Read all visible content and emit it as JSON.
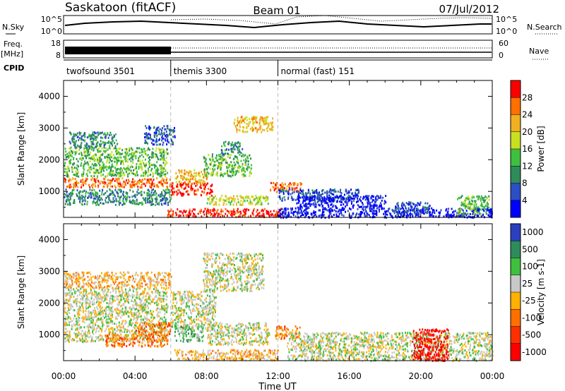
{
  "header": {
    "station": "Saskatoon (fitACF)",
    "beam": "Beam 01",
    "date": "07/Jul/2012"
  },
  "nsky_panel": {
    "left_label": "N.Sky",
    "right_label": "N.Search",
    "left_ticks": [
      "10^5",
      "10^0"
    ],
    "right_ticks": [
      "10^5",
      "10^0"
    ]
  },
  "freq_panel": {
    "left_label_1": "Freq.",
    "left_label_2": "[MHz]",
    "right_label": "Nave",
    "left_ticks": [
      "18",
      "8"
    ],
    "right_ticks": [
      "60",
      "0"
    ]
  },
  "cpid": {
    "label": "CPID",
    "segments": [
      {
        "name": "twofsound 3501",
        "start_hour": 0,
        "end_hour": 6
      },
      {
        "name": "themis 3300",
        "start_hour": 6,
        "end_hour": 12
      },
      {
        "name": "normal (fast) 151",
        "start_hour": 12,
        "end_hour": 24
      }
    ]
  },
  "chart_data": [
    {
      "type": "heatmap",
      "name": "power",
      "ylabel": "Slant Range [km]",
      "xlim": [
        0,
        24
      ],
      "ylim": [
        180,
        4500
      ],
      "yticks": [
        1000,
        2000,
        3000,
        4000
      ],
      "colorbar": {
        "label": "Power [dB]",
        "ticks": [
          "4",
          "8",
          "12",
          "16",
          "20",
          "24",
          "28"
        ],
        "colors": [
          "#0000ff",
          "#2b4fc4",
          "#2e8c5a",
          "#3fbf3f",
          "#c8e020",
          "#f0b020",
          "#ff7000",
          "#ff0000"
        ]
      },
      "blobs": [
        {
          "h0": 0.0,
          "h1": 6.0,
          "r0": 1150,
          "r1": 1450,
          "level": 6
        },
        {
          "h0": 0.0,
          "h1": 5.8,
          "r0": 1500,
          "r1": 2400,
          "level": 3
        },
        {
          "h0": 0.3,
          "h1": 3.0,
          "r0": 2400,
          "r1": 2900,
          "level": 2
        },
        {
          "h0": 0.0,
          "h1": 6.0,
          "r0": 600,
          "r1": 1100,
          "level": 2
        },
        {
          "h0": 4.5,
          "h1": 6.2,
          "r0": 2500,
          "r1": 3100,
          "level": 1
        },
        {
          "h0": 6.0,
          "h1": 8.3,
          "r0": 900,
          "r1": 1300,
          "level": 7
        },
        {
          "h0": 6.2,
          "h1": 8.0,
          "r0": 1300,
          "r1": 1700,
          "level": 5
        },
        {
          "h0": 7.8,
          "h1": 10.5,
          "r0": 1500,
          "r1": 2200,
          "level": 3
        },
        {
          "h0": 8.8,
          "h1": 10.0,
          "r0": 2200,
          "r1": 2600,
          "level": 2
        },
        {
          "h0": 9.5,
          "h1": 11.7,
          "r0": 2900,
          "r1": 3400,
          "level": 5
        },
        {
          "h0": 5.8,
          "h1": 12.3,
          "r0": 220,
          "r1": 480,
          "level": 7
        },
        {
          "h0": 8.0,
          "h1": 11.5,
          "r0": 600,
          "r1": 900,
          "level": 4
        },
        {
          "h0": 11.5,
          "h1": 13.3,
          "r0": 1000,
          "r1": 1300,
          "level": 6
        },
        {
          "h0": 12.0,
          "h1": 16.5,
          "r0": 700,
          "r1": 1100,
          "level": 1
        },
        {
          "h0": 12.0,
          "h1": 24.0,
          "r0": 200,
          "r1": 500,
          "level": 0
        },
        {
          "h0": 13.0,
          "h1": 18.0,
          "r0": 500,
          "r1": 900,
          "level": 0
        },
        {
          "h0": 18.5,
          "h1": 20.5,
          "r0": 300,
          "r1": 700,
          "level": 1
        },
        {
          "h0": 22.0,
          "h1": 23.8,
          "r0": 300,
          "r1": 900,
          "level": 3
        }
      ]
    },
    {
      "type": "heatmap",
      "name": "velocity",
      "xlabel": "Time UT",
      "ylabel": "Slant Range [km]",
      "xlim": [
        0,
        24
      ],
      "ylim": [
        180,
        4500
      ],
      "xticks": [
        "00:00",
        "04:00",
        "08:00",
        "12:00",
        "16:00",
        "20:00",
        "00:00"
      ],
      "yticks": [
        1000,
        2000,
        3000,
        4000
      ],
      "colorbar": {
        "label": "Velocity",
        "unit": "[m s-1]",
        "ticks": [
          "1000",
          "500",
          "100",
          "25",
          "-25",
          "-100",
          "-500",
          "-1000"
        ],
        "colors": [
          "#2b3fbf",
          "#2e8c5a",
          "#3fbf3f",
          "#c8c8c8",
          "#ffb000",
          "#ff7000",
          "#ff3000",
          "#ff0000"
        ]
      },
      "blobs": [
        {
          "h0": 0.0,
          "h1": 5.8,
          "r0": 800,
          "r1": 2500,
          "level": 3
        },
        {
          "h0": 2.3,
          "h1": 5.8,
          "r0": 650,
          "r1": 1050,
          "level": 5
        },
        {
          "h0": 4.0,
          "h1": 6.0,
          "r0": 1050,
          "r1": 1400,
          "level": 5
        },
        {
          "h0": 6.0,
          "h1": 8.5,
          "r0": 1200,
          "r1": 2400,
          "level": 3
        },
        {
          "h0": 6.2,
          "h1": 7.8,
          "r0": 800,
          "r1": 1300,
          "level": 2
        },
        {
          "h0": 8.0,
          "h1": 11.5,
          "r0": 700,
          "r1": 1400,
          "level": 3
        },
        {
          "h0": 7.8,
          "h1": 11.2,
          "r0": 2400,
          "r1": 3600,
          "level": 3
        },
        {
          "h0": 6.2,
          "h1": 12.0,
          "r0": 220,
          "r1": 550,
          "level": 4
        },
        {
          "h0": 11.8,
          "h1": 13.2,
          "r0": 900,
          "r1": 1300,
          "level": 5
        },
        {
          "h0": 12.5,
          "h1": 24.0,
          "r0": 200,
          "r1": 1100,
          "level": 3
        },
        {
          "h0": 19.5,
          "h1": 21.5,
          "r0": 200,
          "r1": 1200,
          "level": 7
        },
        {
          "h0": 0.0,
          "h1": 6.0,
          "r0": 2500,
          "r1": 3000,
          "level": 4
        }
      ]
    }
  ]
}
